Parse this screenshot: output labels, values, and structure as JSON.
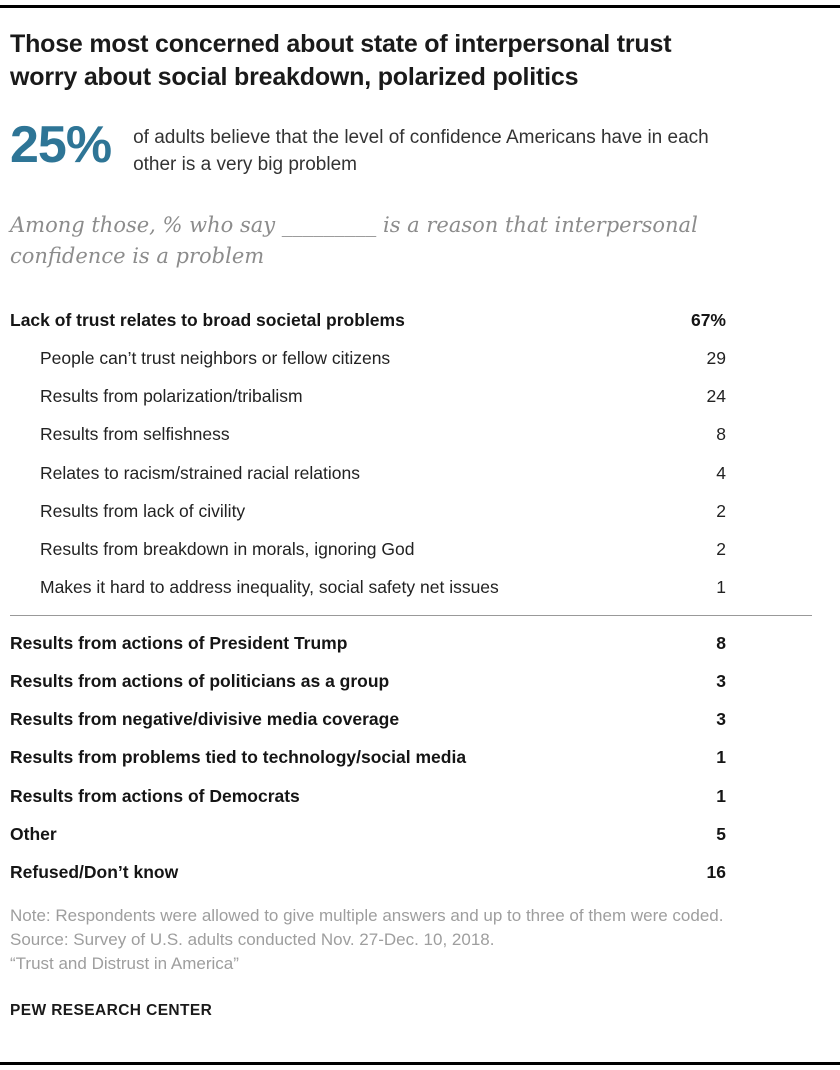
{
  "accent_color": "#2e7596",
  "header": {
    "title": "Those most concerned about state of interpersonal trust worry about social breakdown, polarized politics",
    "stat_value": "25%",
    "stat_text": "of adults believe that the level of confidence Americans have in each other is a very big problem",
    "subtitle": "Among those, % who say _________ is a reason that interpersonal confidence is a problem"
  },
  "chart_data": {
    "type": "table",
    "title": "Among those, % who say _________ is a reason that interpersonal confidence is a problem",
    "stat_callout": {
      "value": 25,
      "unit": "%",
      "text": "of adults believe that the level of confidence Americans have in each other is a very big problem"
    },
    "group_row": {
      "label": "Lack of trust relates to broad societal problems",
      "value": 67,
      "display": "67%"
    },
    "sub_rows": [
      {
        "label": "People can’t trust neighbors or fellow citizens",
        "value": 29,
        "display": "29"
      },
      {
        "label": "Results from polarization/tribalism",
        "value": 24,
        "display": "24"
      },
      {
        "label": "Results from selfishness",
        "value": 8,
        "display": "8"
      },
      {
        "label": "Relates to racism/strained racial relations",
        "value": 4,
        "display": "4"
      },
      {
        "label": "Results from lack of civility",
        "value": 2,
        "display": "2"
      },
      {
        "label": "Results from breakdown in morals, ignoring God",
        "value": 2,
        "display": "2"
      },
      {
        "label": "Makes it hard to address inequality, social safety net issues",
        "value": 1,
        "display": "1"
      }
    ],
    "main_rows": [
      {
        "label": "Results from actions of President Trump",
        "value": 8,
        "display": "8"
      },
      {
        "label": "Results from actions of politicians as a group",
        "value": 3,
        "display": "3"
      },
      {
        "label": "Results from negative/divisive media coverage",
        "value": 3,
        "display": "3"
      },
      {
        "label": "Results from problems tied to technology/social media",
        "value": 1,
        "display": "1"
      },
      {
        "label": "Results from actions of Democrats",
        "value": 1,
        "display": "1"
      },
      {
        "label": "Other",
        "value": 5,
        "display": "5"
      },
      {
        "label": "Refused/Don’t know",
        "value": 16,
        "display": "16"
      }
    ]
  },
  "footer": {
    "note": "Note: Respondents were allowed to give multiple answers and up to three of them were coded.",
    "source": "Source: Survey of U.S. adults conducted Nov. 27-Dec. 10, 2018.",
    "report": "“Trust and Distrust in America”",
    "brand": "PEW RESEARCH CENTER"
  }
}
